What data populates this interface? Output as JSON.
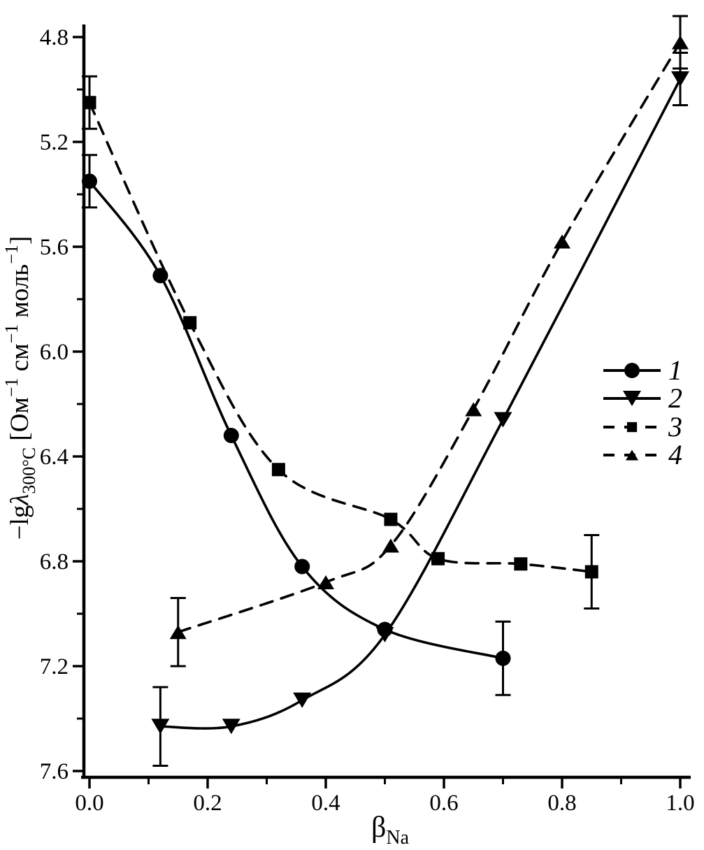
{
  "figure": {
    "background": "#ffffff",
    "ink": "#000000"
  },
  "chart_data": {
    "type": "scatter",
    "title": "",
    "grid": false,
    "x_axis": {
      "label_parts": [
        {
          "t": "β",
          "k": "n"
        },
        {
          "t": "Na",
          "k": "sub"
        }
      ],
      "min": 0.0,
      "max": 1.0,
      "major_ticks": [
        0.0,
        0.2,
        0.4,
        0.6,
        0.8,
        1.0
      ],
      "tick_labels": [
        "0.0",
        "0.2",
        "0.4",
        "0.6",
        "0.8",
        "1.0"
      ],
      "minor_ticks": [
        0.1,
        0.3,
        0.5,
        0.7,
        0.9
      ]
    },
    "y_axis": {
      "label_parts": [
        {
          "t": "−lg",
          "k": "n"
        },
        {
          "t": "λ",
          "k": "i"
        },
        {
          "t": "300°C",
          "k": "sub"
        },
        {
          "t": " [Ом",
          "k": "n"
        },
        {
          "t": "−1",
          "k": "sup"
        },
        {
          "t": " см",
          "k": "n"
        },
        {
          "t": "−1",
          "k": "sup"
        },
        {
          "t": " моль",
          "k": "n"
        },
        {
          "t": "−1",
          "k": "sup"
        },
        {
          "t": "]",
          "k": "n"
        }
      ],
      "min": 4.8,
      "max": 7.6,
      "inverted": true,
      "major_ticks": [
        4.8,
        5.2,
        5.6,
        6.0,
        6.4,
        6.8,
        7.2,
        7.6
      ],
      "tick_labels": [
        "4.8",
        "5.2",
        "5.6",
        "6.0",
        "6.4",
        "6.8",
        "7.2",
        "7.6"
      ],
      "minor_ticks": [
        5.0,
        5.4,
        5.8,
        6.2,
        6.6,
        7.0,
        7.4
      ]
    },
    "series": [
      {
        "name": "1",
        "marker": "circle",
        "line": "solid",
        "color": "#000000",
        "points": [
          {
            "x": 0.0,
            "y": 5.35,
            "err": 0.1
          },
          {
            "x": 0.12,
            "y": 5.71
          },
          {
            "x": 0.24,
            "y": 6.32
          },
          {
            "x": 0.36,
            "y": 6.82
          },
          {
            "x": 0.5,
            "y": 7.06
          },
          {
            "x": 0.7,
            "y": 7.17,
            "err": 0.14
          }
        ]
      },
      {
        "name": "2",
        "marker": "triangle-down",
        "line": "solid",
        "color": "#000000",
        "points": [
          {
            "x": 0.12,
            "y": 7.43,
            "err": 0.15
          },
          {
            "x": 0.24,
            "y": 7.43
          },
          {
            "x": 0.36,
            "y": 7.33
          },
          {
            "x": 0.5,
            "y": 7.08
          },
          {
            "x": 0.7,
            "y": 6.26
          },
          {
            "x": 1.0,
            "y": 4.96,
            "err": 0.1
          }
        ]
      },
      {
        "name": "3",
        "marker": "square",
        "line": "dashed",
        "color": "#000000",
        "points": [
          {
            "x": 0.0,
            "y": 5.05,
            "err": 0.1
          },
          {
            "x": 0.17,
            "y": 5.89
          },
          {
            "x": 0.32,
            "y": 6.45
          },
          {
            "x": 0.51,
            "y": 6.64
          },
          {
            "x": 0.59,
            "y": 6.79
          },
          {
            "x": 0.73,
            "y": 6.81
          },
          {
            "x": 0.85,
            "y": 6.84,
            "err": 0.14
          }
        ]
      },
      {
        "name": "4",
        "marker": "triangle-up",
        "line": "dashed",
        "color": "#000000",
        "points": [
          {
            "x": 0.15,
            "y": 7.07,
            "err": 0.13
          },
          {
            "x": 0.4,
            "y": 6.88
          },
          {
            "x": 0.51,
            "y": 6.74
          },
          {
            "x": 0.65,
            "y": 6.22
          },
          {
            "x": 0.8,
            "y": 5.58
          },
          {
            "x": 1.0,
            "y": 4.82,
            "err": 0.1
          }
        ]
      }
    ],
    "legend": {
      "position": "right-middle",
      "items": [
        {
          "label": "1",
          "series": 0
        },
        {
          "label": "2",
          "series": 1
        },
        {
          "label": "3",
          "series": 2
        },
        {
          "label": "4",
          "series": 3
        }
      ]
    }
  }
}
